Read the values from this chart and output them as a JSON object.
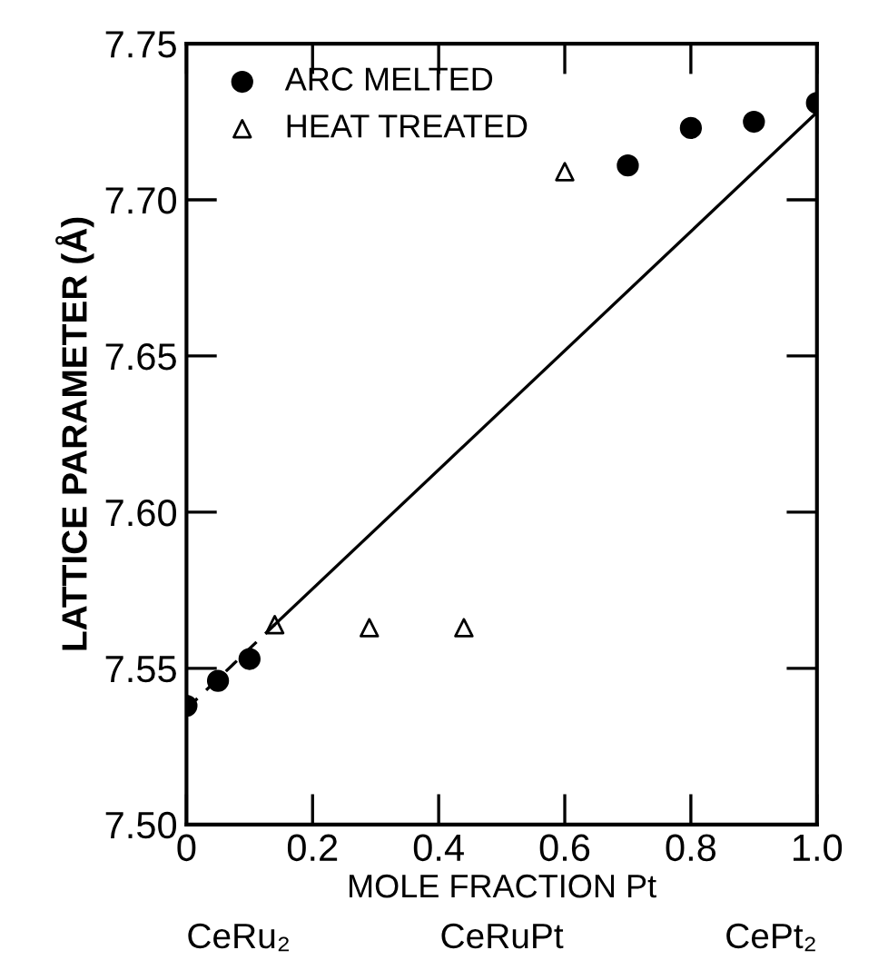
{
  "chart_data": {
    "type": "scatter",
    "xlabel": "MOLE FRACTION Pt",
    "ylabel": "LATTICE PARAMETER (Å)",
    "xlim": [
      0,
      1.0
    ],
    "ylim": [
      7.5,
      7.75
    ],
    "xticks": [
      {
        "value": 0,
        "label": "0"
      },
      0.2,
      0.4,
      0.6,
      0.8,
      {
        "value": 1.0,
        "label": "1.0"
      }
    ],
    "yticks": [
      {
        "value": 7.5,
        "label": "7.50"
      },
      7.55,
      {
        "value": 7.6,
        "label": "7.60"
      },
      7.65,
      {
        "value": 7.7,
        "label": "7.70"
      },
      7.75
    ],
    "legend": "top left",
    "grid": false,
    "series": [
      {
        "name": "ARC MELTED",
        "marker": "circle",
        "color": "#000000",
        "x": [
          0,
          0.05,
          0.1,
          0.7,
          0.8,
          0.9,
          1.0
        ],
        "values": [
          7.538,
          7.546,
          7.553,
          7.711,
          7.723,
          7.725,
          7.731
        ]
      },
      {
        "name": "HEAT TREATED",
        "marker": "triangle",
        "color": "#000000",
        "x": [
          0.14,
          0.29,
          0.44,
          0.6
        ],
        "values": [
          7.564,
          7.563,
          7.563,
          7.709
        ]
      },
      {
        "type": "line",
        "line_style": "dashed",
        "color": "#000000",
        "x": [
          0,
          0.14
        ],
        "values": [
          7.537,
          7.564
        ]
      },
      {
        "type": "line",
        "line_style": "solid",
        "color": "#000000",
        "x": [
          0.14,
          1.0
        ],
        "values": [
          7.564,
          7.728
        ]
      }
    ],
    "annotations": [
      "CeRu₂",
      "CeRuPt",
      "CePt₂"
    ]
  }
}
